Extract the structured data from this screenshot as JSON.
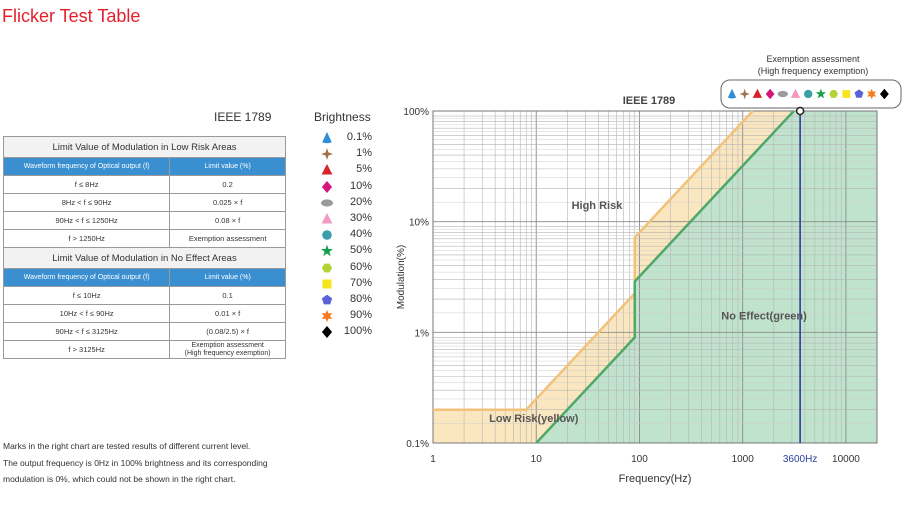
{
  "title": "Flicker Test Table",
  "standard_label": "IEEE 1789",
  "table": {
    "low_risk": {
      "title": "Limit Value of Modulation in Low Risk Areas",
      "col_freq": "Waveform frequency of Optical output (f)",
      "col_limit": "Limit value (%)",
      "rows": [
        {
          "freq": "f ≤ 8Hz",
          "limit": "0.2"
        },
        {
          "freq": "8Hz < f ≤ 90Hz",
          "limit": "0.025 × f"
        },
        {
          "freq": "90Hz < f ≤ 1250Hz",
          "limit": "0.08 × f"
        },
        {
          "freq": "f > 1250Hz",
          "limit": "Exemption assessment"
        }
      ]
    },
    "no_effect": {
      "title": "Limit Value of Modulation in No Effect Areas",
      "col_freq": "Waveform frequency of Optical output (f)",
      "col_limit": "Limit value (%)",
      "rows": [
        {
          "freq": "f ≤ 10Hz",
          "limit": "0.1",
          "limit2": ""
        },
        {
          "freq": "10Hz < f ≤ 90Hz",
          "limit": "0.01 × f",
          "limit2": ""
        },
        {
          "freq": "90Hz < f ≤ 3125Hz",
          "limit": "(0.08/2.5) × f",
          "limit2": ""
        },
        {
          "freq": "f > 3125Hz",
          "limit": "Exemption assessment",
          "limit2": "(High frequency exemption)"
        }
      ]
    }
  },
  "legend": {
    "title": "Brightness",
    "items": [
      {
        "label": "0.1%",
        "shape": "cone",
        "color": "#2e8fd8"
      },
      {
        "label": "1%",
        "shape": "star4",
        "color": "#a0704a"
      },
      {
        "label": "5%",
        "shape": "triangle",
        "color": "#d8232a"
      },
      {
        "label": "10%",
        "shape": "diamond",
        "color": "#d6157a"
      },
      {
        "label": "20%",
        "shape": "ellipse",
        "color": "#9b9b9b"
      },
      {
        "label": "30%",
        "shape": "triangle",
        "color": "#f49ac1"
      },
      {
        "label": "40%",
        "shape": "circle",
        "color": "#3a9fa8"
      },
      {
        "label": "50%",
        "shape": "star5",
        "color": "#14a04a"
      },
      {
        "label": "60%",
        "shape": "hexagon",
        "color": "#b5d334"
      },
      {
        "label": "70%",
        "shape": "square",
        "color": "#f7e51c"
      },
      {
        "label": "80%",
        "shape": "pentagon",
        "color": "#5b63d8"
      },
      {
        "label": "90%",
        "shape": "star6",
        "color": "#f47b20"
      },
      {
        "label": "100%",
        "shape": "diamond",
        "color": "#000000"
      }
    ]
  },
  "notes": [
    "Marks in the right chart are tested results of different current level.",
    "The output frequency is 0Hz in 100% brightness and its corresponding",
    "modulation is 0%, which could not be shown in the right chart."
  ],
  "chart_data": {
    "type": "line",
    "title": "IEEE 1789",
    "xlabel": "Frequency(Hz)",
    "ylabel": "Modulation(%)",
    "x_scale": "log",
    "y_scale": "log",
    "xlim": [
      1,
      20000
    ],
    "ylim": [
      0.1,
      100
    ],
    "x_ticks": [
      {
        "value": 1,
        "label": "1"
      },
      {
        "value": 10,
        "label": "10"
      },
      {
        "value": 100,
        "label": "100"
      },
      {
        "value": 1000,
        "label": "1000"
      },
      {
        "value": 3600,
        "label": "3600Hz"
      },
      {
        "value": 10000,
        "label": "10000"
      }
    ],
    "y_ticks": [
      {
        "value": 0.1,
        "label": "0.1%"
      },
      {
        "value": 1,
        "label": "1%"
      },
      {
        "value": 10,
        "label": "10%"
      },
      {
        "value": 100,
        "label": "100%"
      }
    ],
    "grid": true,
    "series": [
      {
        "name": "Low Risk(yellow)",
        "color": "#f2c27a",
        "fill": "#fbe7bf",
        "points": [
          [
            1,
            0.2
          ],
          [
            8,
            0.2
          ],
          [
            90,
            2.25
          ],
          [
            90,
            7.2
          ],
          [
            1250,
            100
          ]
        ]
      },
      {
        "name": "No Effect(green)",
        "color": "#4fa86a",
        "fill": "#bfe3cc",
        "points": [
          [
            10,
            0.1
          ],
          [
            90,
            0.9
          ],
          [
            90,
            2.88
          ],
          [
            3125,
            100
          ]
        ]
      }
    ],
    "regions": [
      {
        "label": "High Risk",
        "x": 22,
        "y": 13
      },
      {
        "label": "Low Risk(yellow)",
        "x": 3.5,
        "y": 0.155
      },
      {
        "label": "No Effect(green)",
        "x": 620,
        "y": 1.3
      }
    ],
    "marker_line": {
      "x": 3600,
      "color": "#2b3f9c"
    },
    "exemption": {
      "line1": "Exemption assessment",
      "line2": "(High frequency exemption)",
      "x": 3600,
      "y": 100
    }
  }
}
